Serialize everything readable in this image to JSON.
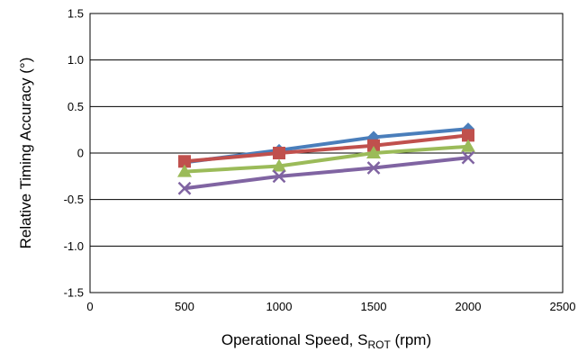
{
  "chart_data": {
    "type": "line",
    "title": "",
    "xlabel": "Operational Speed, S",
    "xlabel_sub": "ROT",
    "xlabel_suffix": " (rpm)",
    "ylabel": "Relative Timing Accuracy (°)",
    "xlim": [
      0,
      2500
    ],
    "ylim": [
      -1.5,
      1.5
    ],
    "x_ticks": [
      0,
      500,
      1000,
      1500,
      2000,
      2500
    ],
    "x_tick_labels": [
      "0",
      "500",
      "1000",
      "1500",
      "2000",
      "2500"
    ],
    "y_ticks": [
      1.5,
      1.0,
      0.5,
      0,
      -0.5,
      -1.0,
      -1.5
    ],
    "y_tick_labels": [
      "1.5",
      "1.0",
      "0.5",
      "0",
      "-0.5",
      "-1.0",
      "-1.5"
    ],
    "grid": "horizontal",
    "legend": "none",
    "series": [
      {
        "marker": "diamond",
        "color": "#4a7ebb",
        "x": [
          500,
          1000,
          1500,
          2000
        ],
        "y": [
          -0.1,
          0.03,
          0.17,
          0.26
        ]
      },
      {
        "marker": "square",
        "color": "#c0504d",
        "x": [
          500,
          1000,
          1500,
          2000
        ],
        "y": [
          -0.09,
          0.0,
          0.08,
          0.19
        ]
      },
      {
        "marker": "triangle",
        "color": "#9bbb59",
        "x": [
          500,
          1000,
          1500,
          2000
        ],
        "y": [
          -0.2,
          -0.14,
          0.0,
          0.07
        ]
      },
      {
        "marker": "x",
        "color": "#8064a2",
        "x": [
          500,
          1000,
          1500,
          2000
        ],
        "y": [
          -0.38,
          -0.25,
          -0.16,
          -0.05
        ]
      }
    ]
  }
}
